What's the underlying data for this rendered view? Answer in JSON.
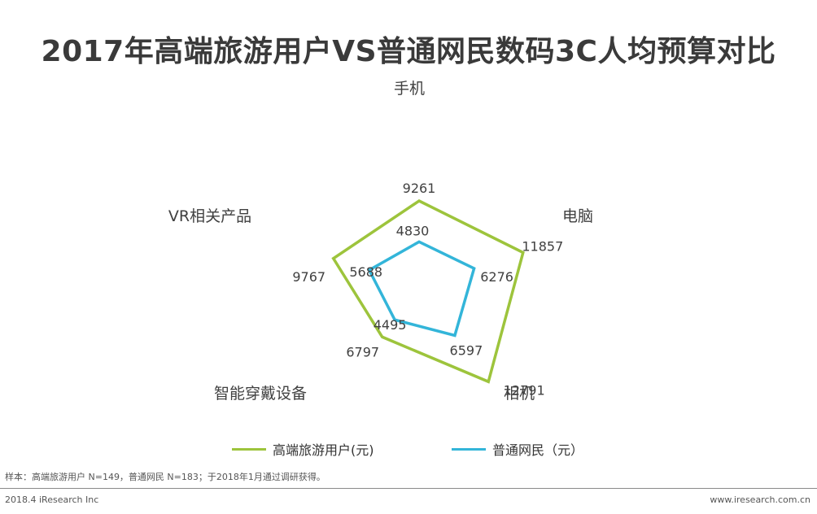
{
  "chart_data": {
    "type": "radar",
    "title": "2017年高端旅游用户VS普通网民数码3C人均预算对比",
    "axes": [
      "手机",
      "电脑",
      "相机",
      "智能穿戴设备",
      "VR相关产品"
    ],
    "series": [
      {
        "name": "高端旅游用户(元)",
        "color": "#9dc43c",
        "values": [
          9261,
          11857,
          12791,
          6797,
          9767
        ]
      },
      {
        "name": "普通网民（元）",
        "color": "#33b5d9",
        "values": [
          4830,
          6276,
          6597,
          4495,
          5688
        ]
      }
    ],
    "grid": false,
    "legend": "bottom"
  },
  "note": "样本：高端旅游用户 N=149，普通网民 N=183；于2018年1月通过调研获得。",
  "footer": {
    "left": "2018.4 iResearch Inc",
    "right": "www.iresearch.com.cn"
  }
}
